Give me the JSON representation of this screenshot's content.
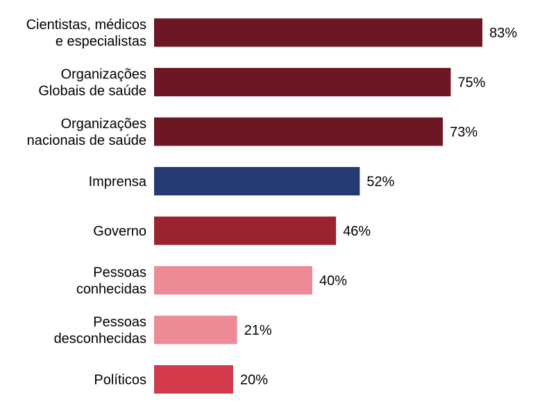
{
  "chart_data": {
    "type": "bar",
    "orientation": "horizontal",
    "categories": [
      [
        "Cientistas, médicos",
        "e especialistas"
      ],
      [
        "Organizações",
        "Globais de saúde"
      ],
      [
        "Organizações",
        "nacionais de saúde"
      ],
      [
        "Imprensa"
      ],
      [
        "Governo"
      ],
      [
        "Pessoas",
        "conhecidas"
      ],
      [
        "Pessoas",
        "desconhecidas"
      ],
      [
        "Políticos"
      ]
    ],
    "values": [
      83,
      75,
      73,
      52,
      46,
      40,
      21,
      20
    ],
    "value_labels": [
      "83%",
      "75%",
      "73%",
      "52%",
      "46%",
      "40%",
      "21%",
      "20%"
    ],
    "bar_colors": [
      "#6d1624",
      "#6d1624",
      "#6d1624",
      "#243a72",
      "#9a2330",
      "#ec8a96",
      "#ec8a96",
      "#d33a4c"
    ],
    "xlim": [
      0,
      100
    ],
    "grid": false,
    "legend": "none"
  }
}
